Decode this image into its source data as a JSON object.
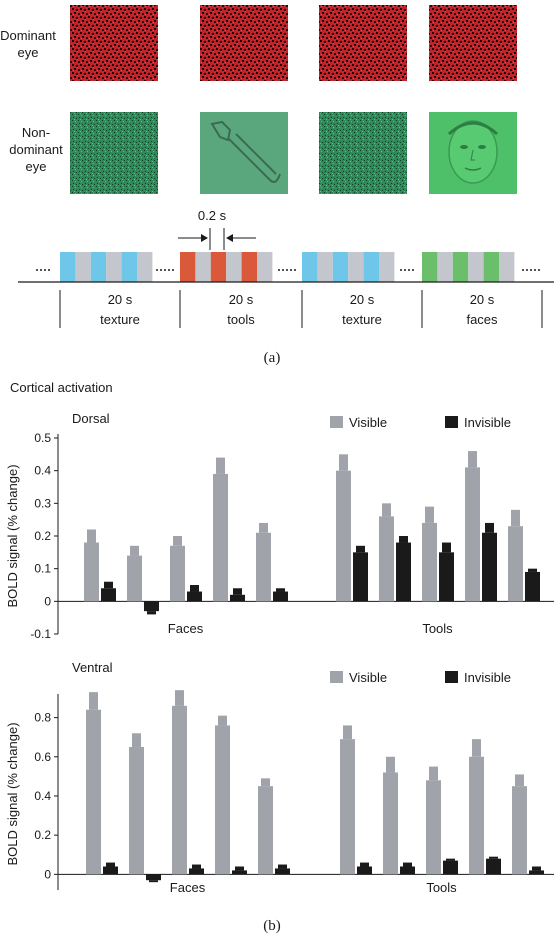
{
  "panel_a": {
    "row_labels": {
      "dominant": [
        "Dominant",
        "eye"
      ],
      "nondominant": [
        "Non-",
        "dominant",
        "eye"
      ]
    },
    "interval_label": "0.2 s",
    "blocks": [
      {
        "duration": "20 s",
        "kind": "texture"
      },
      {
        "duration": "20 s",
        "kind": "tools"
      },
      {
        "duration": "20 s",
        "kind": "texture"
      },
      {
        "duration": "20 s",
        "kind": "faces"
      }
    ],
    "caption": "(a)",
    "colors": {
      "blue": "#6ec6e8",
      "red": "#d9593a",
      "green": "#6cbf6a",
      "gray": "#c3c6cc"
    }
  },
  "panel_b": {
    "title": "Cortical activation",
    "caption": "(b)",
    "ylabel": "BOLD signal (% change)"
  },
  "chart_data": [
    {
      "type": "bar",
      "title": "Dorsal",
      "xlabel": "",
      "ylabel": "BOLD signal (% change)",
      "groups": [
        "Faces",
        "Tools"
      ],
      "ylim": [
        -0.1,
        0.5
      ],
      "yticks": [
        -0.1,
        0,
        0.1,
        0.2,
        0.3,
        0.4,
        0.5
      ],
      "legend": {
        "placement": "top-right",
        "entries": [
          "Visible",
          "Invisible"
        ]
      },
      "colors": {
        "Visible": "#a0a4aa",
        "Invisible": "#1a1a1a"
      },
      "series": [
        {
          "name": "Visible",
          "values": [
            [
              0.18,
              0.14,
              0.17,
              0.39,
              0.21
            ],
            [
              0.4,
              0.26,
              0.24,
              0.41,
              0.23
            ]
          ],
          "errors": [
            [
              0.04,
              0.03,
              0.03,
              0.05,
              0.03
            ],
            [
              0.05,
              0.04,
              0.05,
              0.05,
              0.05
            ]
          ]
        },
        {
          "name": "Invisible",
          "values": [
            [
              0.04,
              -0.03,
              0.03,
              0.02,
              0.03
            ],
            [
              0.15,
              0.18,
              0.15,
              0.21,
              0.09
            ]
          ],
          "errors": [
            [
              0.02,
              0.01,
              0.02,
              0.02,
              0.01
            ],
            [
              0.02,
              0.02,
              0.03,
              0.03,
              0.01
            ]
          ]
        }
      ]
    },
    {
      "type": "bar",
      "title": "Ventral",
      "xlabel": "",
      "ylabel": "BOLD signal (% change)",
      "groups": [
        "Faces",
        "Tools"
      ],
      "ylim": [
        -0.08,
        0.9
      ],
      "yticks": [
        0,
        0.2,
        0.4,
        0.6,
        0.8
      ],
      "legend": {
        "placement": "top-right",
        "entries": [
          "Visible",
          "Invisible"
        ]
      },
      "colors": {
        "Visible": "#a0a4aa",
        "Invisible": "#1a1a1a"
      },
      "series": [
        {
          "name": "Visible",
          "values": [
            [
              0.84,
              0.65,
              0.86,
              0.76,
              0.45
            ],
            [
              0.69,
              0.52,
              0.48,
              0.6,
              0.45
            ]
          ],
          "errors": [
            [
              0.09,
              0.07,
              0.08,
              0.05,
              0.04
            ],
            [
              0.07,
              0.08,
              0.07,
              0.09,
              0.06
            ]
          ]
        },
        {
          "name": "Invisible",
          "values": [
            [
              0.04,
              -0.03,
              0.03,
              0.02,
              0.03
            ],
            [
              0.04,
              0.04,
              0.07,
              0.08,
              0.02
            ]
          ],
          "errors": [
            [
              0.02,
              0.01,
              0.02,
              0.02,
              0.02
            ],
            [
              0.02,
              0.02,
              0.01,
              0.01,
              0.02
            ]
          ]
        }
      ]
    }
  ]
}
